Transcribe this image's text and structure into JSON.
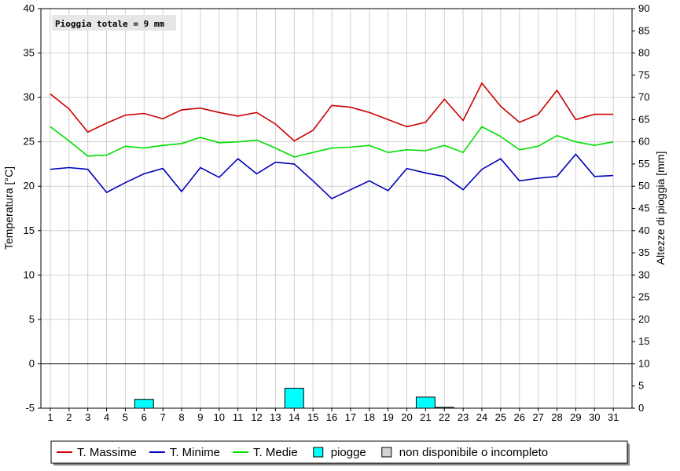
{
  "chart_data": {
    "type": "line",
    "annotation": "Pioggia totale = 9 mm",
    "ylabel_left": "Temperatura [°C]",
    "ylabel_right": "Altezze di pioggia [mm]",
    "x": [
      1,
      2,
      3,
      4,
      5,
      6,
      7,
      8,
      9,
      10,
      11,
      12,
      13,
      14,
      15,
      16,
      17,
      18,
      19,
      20,
      21,
      22,
      23,
      24,
      25,
      26,
      27,
      28,
      29,
      30,
      31
    ],
    "y_left_range": [
      -5,
      40
    ],
    "y_left_ticks": [
      -5,
      0,
      5,
      10,
      15,
      20,
      25,
      30,
      35,
      40
    ],
    "y_right_range": [
      0,
      90
    ],
    "y_right_ticks": [
      0,
      5,
      10,
      15,
      20,
      25,
      30,
      35,
      40,
      45,
      50,
      55,
      60,
      65,
      70,
      75,
      80,
      85,
      90
    ],
    "grid": true,
    "legend_position": "bottom",
    "series": [
      {
        "name": "T. Massime",
        "color": "#cc0000",
        "values": [
          30.4,
          28.7,
          26.1,
          27.1,
          28.0,
          28.2,
          27.6,
          28.6,
          28.8,
          28.3,
          27.9,
          28.3,
          27.0,
          25.1,
          26.3,
          29.1,
          28.9,
          28.3,
          27.5,
          26.7,
          27.2,
          29.8,
          27.4,
          31.6,
          29.0,
          27.2,
          28.1,
          30.8,
          27.5,
          28.1,
          28.1
        ]
      },
      {
        "name": "T. Minime",
        "color": "#0000bb",
        "values": [
          21.9,
          22.1,
          21.9,
          19.3,
          20.4,
          21.4,
          22.0,
          19.4,
          22.1,
          21.0,
          23.1,
          21.4,
          22.7,
          22.5,
          20.6,
          18.6,
          19.6,
          20.6,
          19.5,
          22.0,
          21.5,
          21.1,
          19.6,
          21.9,
          23.1,
          20.6,
          20.9,
          21.1,
          23.6,
          21.1,
          21.2
        ]
      },
      {
        "name": "T. Medie",
        "color": "#00dd00",
        "values": [
          26.7,
          25.1,
          23.4,
          23.5,
          24.5,
          24.3,
          24.6,
          24.8,
          25.5,
          24.9,
          25.0,
          25.2,
          24.3,
          23.3,
          23.8,
          24.3,
          24.4,
          24.6,
          23.8,
          24.1,
          24.0,
          24.6,
          23.8,
          26.7,
          25.6,
          24.1,
          24.5,
          25.7,
          25.0,
          24.6,
          25.0
        ]
      }
    ],
    "rain": {
      "name": "piogge",
      "color": "#00ffff",
      "values": [
        0,
        0,
        0,
        0,
        0,
        2.0,
        0,
        0,
        0,
        0,
        0,
        0,
        0,
        4.5,
        0,
        0,
        0,
        0,
        0,
        0,
        2.5,
        0.2,
        0,
        0,
        0,
        0,
        0,
        0,
        0,
        0,
        0
      ]
    },
    "legend": [
      {
        "label": "T. Massime",
        "kind": "line",
        "color": "#cc0000"
      },
      {
        "label": "T. Minime",
        "kind": "line",
        "color": "#0000bb"
      },
      {
        "label": "T. Medie",
        "kind": "line",
        "color": "#00dd00"
      },
      {
        "label": "piogge",
        "kind": "box",
        "color": "#00ffff"
      },
      {
        "label": "non disponibile o incompleto",
        "kind": "box",
        "color": "#d4d4d4"
      }
    ]
  }
}
